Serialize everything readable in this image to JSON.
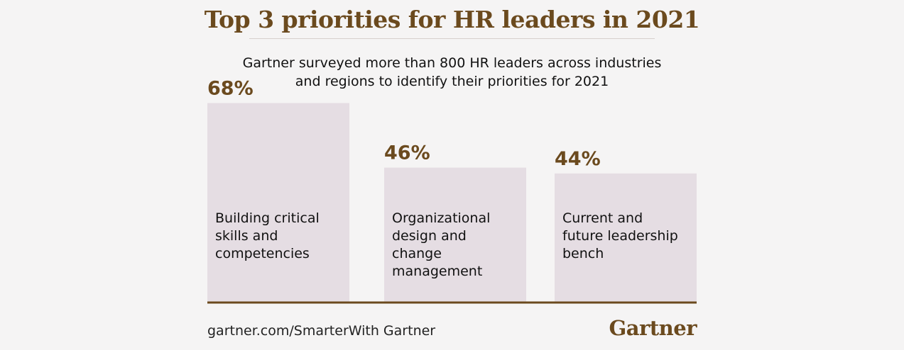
{
  "header": {
    "title": "Top 3 priorities for HR leaders in 2021",
    "subtitle_lines": [
      "Gartner surveyed more than 800 HR leaders across industries",
      "and regions to identify their priorities for 2021"
    ]
  },
  "chart_data": {
    "type": "bar",
    "categories": [
      [
        "Building critical",
        "skills and",
        "competencies"
      ],
      [
        "Organizational",
        "design and",
        "change",
        "management"
      ],
      [
        "Current and",
        "future leadership",
        "bench"
      ]
    ],
    "values": [
      68,
      46,
      44
    ],
    "value_labels": [
      "68%",
      "46%",
      "44%"
    ],
    "ylim": [
      0,
      100
    ],
    "colors": {
      "bar": "#e5dde3",
      "value_label": "#6b4a1e",
      "category_label": "#111111",
      "baseline": "#6b4a1e"
    }
  },
  "footer": {
    "url": "gartner.com/SmarterWith Gartner",
    "logo": "Gartner"
  }
}
